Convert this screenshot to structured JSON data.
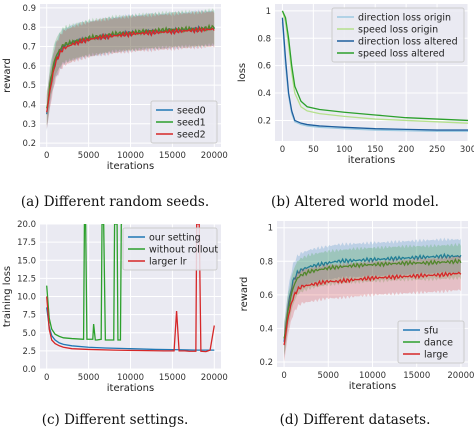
{
  "figure": {
    "captions": [
      "(a) Different random seeds.",
      "(b) Altered world model.",
      "(c) Different settings.",
      "(d) Different datasets."
    ]
  },
  "chart_data": [
    {
      "type": "line",
      "title": "",
      "xlabel": "iterations",
      "ylabel": "reward",
      "xlim": [
        -800,
        20800
      ],
      "ylim": [
        0.18,
        0.92
      ],
      "xticks": [
        0,
        5000,
        10000,
        15000,
        20000
      ],
      "yticks": [
        0.2,
        0.3,
        0.4,
        0.5,
        0.6,
        0.7,
        0.8,
        0.9
      ],
      "grid": true,
      "legend_position": "bottom-right",
      "band_spread": 0.09,
      "series": [
        {
          "name": "seed0",
          "color": "#1f77b4",
          "x": [
            0,
            500,
            1000,
            1500,
            2000,
            3000,
            4000,
            5000,
            6000,
            8000,
            10000,
            12000,
            14000,
            16000,
            18000,
            20000
          ],
          "values": [
            0.35,
            0.52,
            0.62,
            0.67,
            0.7,
            0.72,
            0.73,
            0.74,
            0.745,
            0.76,
            0.77,
            0.775,
            0.78,
            0.785,
            0.79,
            0.795
          ]
        },
        {
          "name": "seed1",
          "color": "#2ca02c",
          "x": [
            0,
            500,
            1000,
            1500,
            2000,
            3000,
            4000,
            5000,
            6000,
            8000,
            10000,
            12000,
            14000,
            16000,
            18000,
            20000
          ],
          "values": [
            0.37,
            0.54,
            0.64,
            0.68,
            0.71,
            0.72,
            0.735,
            0.745,
            0.75,
            0.765,
            0.77,
            0.78,
            0.785,
            0.79,
            0.79,
            0.8
          ]
        },
        {
          "name": "seed2",
          "color": "#d62728",
          "x": [
            0,
            500,
            1000,
            1500,
            2000,
            3000,
            4000,
            5000,
            6000,
            8000,
            10000,
            12000,
            14000,
            16000,
            18000,
            20000
          ],
          "values": [
            0.36,
            0.5,
            0.61,
            0.66,
            0.69,
            0.71,
            0.725,
            0.735,
            0.745,
            0.755,
            0.765,
            0.77,
            0.775,
            0.78,
            0.785,
            0.79
          ]
        }
      ]
    },
    {
      "type": "line",
      "title": "",
      "xlabel": "iterations",
      "ylabel": "loss",
      "xlim": [
        -12,
        300
      ],
      "ylim": [
        0.05,
        1.05
      ],
      "xticks": [
        0,
        50,
        100,
        150,
        200,
        250,
        300
      ],
      "xticklabels": [
        "0",
        "50",
        "100",
        "150",
        "200",
        "250",
        "300"
      ],
      "yticks": [
        0.2,
        0.4,
        0.6,
        0.8,
        1.0
      ],
      "grid": true,
      "legend_position": "top-right",
      "series": [
        {
          "name": "direction loss origin",
          "color": "#9ecae1",
          "x": [
            0,
            5,
            10,
            15,
            20,
            30,
            40,
            60,
            80,
            100,
            150,
            200,
            250,
            300
          ],
          "values": [
            0.92,
            0.6,
            0.38,
            0.25,
            0.19,
            0.17,
            0.16,
            0.15,
            0.145,
            0.14,
            0.13,
            0.125,
            0.12,
            0.12
          ]
        },
        {
          "name": "speed loss origin",
          "color": "#b5e08d",
          "x": [
            0,
            5,
            10,
            15,
            20,
            30,
            40,
            60,
            80,
            100,
            150,
            200,
            250,
            300
          ],
          "values": [
            1.0,
            0.92,
            0.75,
            0.55,
            0.4,
            0.3,
            0.27,
            0.25,
            0.24,
            0.23,
            0.21,
            0.2,
            0.19,
            0.18
          ]
        },
        {
          "name": "direction loss altered",
          "color": "#1f5f9e",
          "x": [
            0,
            5,
            10,
            15,
            20,
            30,
            40,
            60,
            80,
            100,
            150,
            200,
            250,
            300
          ],
          "values": [
            0.95,
            0.65,
            0.4,
            0.27,
            0.2,
            0.18,
            0.17,
            0.16,
            0.155,
            0.15,
            0.14,
            0.135,
            0.13,
            0.13
          ]
        },
        {
          "name": "speed loss altered",
          "color": "#2ca02c",
          "x": [
            0,
            5,
            10,
            15,
            20,
            30,
            40,
            60,
            80,
            100,
            150,
            200,
            250,
            300
          ],
          "values": [
            1.0,
            0.95,
            0.8,
            0.6,
            0.45,
            0.34,
            0.3,
            0.28,
            0.27,
            0.26,
            0.24,
            0.22,
            0.21,
            0.2
          ]
        }
      ]
    },
    {
      "type": "line",
      "title": "",
      "xlabel": "iterations",
      "ylabel": "training loss",
      "xlim": [
        -800,
        20800
      ],
      "ylim": [
        0,
        20
      ],
      "xticks": [
        0,
        5000,
        10000,
        15000,
        20000
      ],
      "yticks": [
        0.0,
        2.5,
        5.0,
        7.5,
        10.0,
        12.5,
        15.0,
        17.5,
        20.0
      ],
      "yticklabels": [
        "0.0",
        "2.5",
        "5.0",
        "7.5",
        "10.0",
        "12.5",
        "15.0",
        "17.5",
        "20.0"
      ],
      "grid": true,
      "legend_position": "top-right",
      "series": [
        {
          "name": "our setting",
          "color": "#1f77b4",
          "x": [
            0,
            300,
            600,
            1000,
            1500,
            2000,
            3000,
            5000,
            7000,
            10000,
            13000,
            16000,
            18000,
            20000
          ],
          "values": [
            8.5,
            5.8,
            4.6,
            4.0,
            3.6,
            3.4,
            3.2,
            3.0,
            2.9,
            2.8,
            2.7,
            2.65,
            2.6,
            2.6
          ]
        },
        {
          "name": "without rollout",
          "color": "#2ca02c",
          "x": [
            0,
            300,
            600,
            1000,
            1500,
            2000,
            3000,
            4400,
            4500,
            4650,
            4800,
            5500,
            5600,
            5800,
            6000,
            6500,
            6600,
            6800,
            7000,
            8000,
            8100,
            8400,
            8500,
            8800,
            8900,
            9000
          ],
          "values": [
            11.5,
            7.0,
            5.5,
            4.8,
            4.5,
            4.3,
            4.2,
            4.1,
            20,
            20,
            4.1,
            4.1,
            6.2,
            4.0,
            4.0,
            4.1,
            20,
            20,
            4.0,
            4.0,
            20,
            20,
            4.0,
            4.0,
            20,
            20
          ]
        },
        {
          "name": "larger lr",
          "color": "#d62728",
          "x": [
            0,
            300,
            600,
            1000,
            1500,
            2000,
            3000,
            5000,
            8000,
            11000,
            14000,
            15200,
            15500,
            15800,
            16500,
            17000,
            17800,
            17900,
            18200,
            18400,
            19000,
            19500,
            20000
          ],
          "values": [
            10.0,
            5.5,
            4.0,
            3.5,
            3.2,
            3.0,
            2.8,
            2.7,
            2.6,
            2.55,
            2.5,
            2.5,
            8.0,
            2.5,
            2.5,
            2.45,
            2.45,
            20,
            20,
            2.45,
            2.4,
            2.6,
            6.0
          ]
        }
      ]
    },
    {
      "type": "line",
      "title": "",
      "xlabel": "iterations",
      "ylabel": "reward",
      "xlim": [
        -800,
        20800
      ],
      "ylim": [
        0.17,
        1.04
      ],
      "xticks": [
        0,
        5000,
        10000,
        15000,
        20000
      ],
      "yticks": [
        0.2,
        0.4,
        0.6,
        0.8,
        1.0
      ],
      "grid": true,
      "legend_position": "bottom-right",
      "band_spread": 0.1,
      "series": [
        {
          "name": "sfu",
          "color": "#1f77b4",
          "x": [
            0,
            500,
            1000,
            1500,
            2000,
            3000,
            4000,
            5000,
            6000,
            8000,
            10000,
            12000,
            14000,
            16000,
            18000,
            20000
          ],
          "values": [
            0.32,
            0.55,
            0.68,
            0.73,
            0.75,
            0.77,
            0.78,
            0.79,
            0.8,
            0.805,
            0.81,
            0.815,
            0.82,
            0.825,
            0.83,
            0.83
          ]
        },
        {
          "name": "dance",
          "color": "#2ca02c",
          "x": [
            0,
            500,
            1000,
            1500,
            2000,
            3000,
            4000,
            5000,
            6000,
            8000,
            10000,
            12000,
            14000,
            16000,
            18000,
            20000
          ],
          "values": [
            0.33,
            0.52,
            0.64,
            0.7,
            0.72,
            0.74,
            0.75,
            0.76,
            0.765,
            0.775,
            0.78,
            0.785,
            0.79,
            0.79,
            0.795,
            0.8
          ]
        },
        {
          "name": "large",
          "color": "#d62728",
          "x": [
            0,
            500,
            1000,
            1500,
            2000,
            3000,
            4000,
            5000,
            6000,
            8000,
            10000,
            12000,
            14000,
            16000,
            18000,
            20000
          ],
          "values": [
            0.3,
            0.48,
            0.58,
            0.63,
            0.65,
            0.66,
            0.67,
            0.68,
            0.68,
            0.69,
            0.7,
            0.705,
            0.71,
            0.715,
            0.72,
            0.73
          ]
        }
      ]
    }
  ]
}
